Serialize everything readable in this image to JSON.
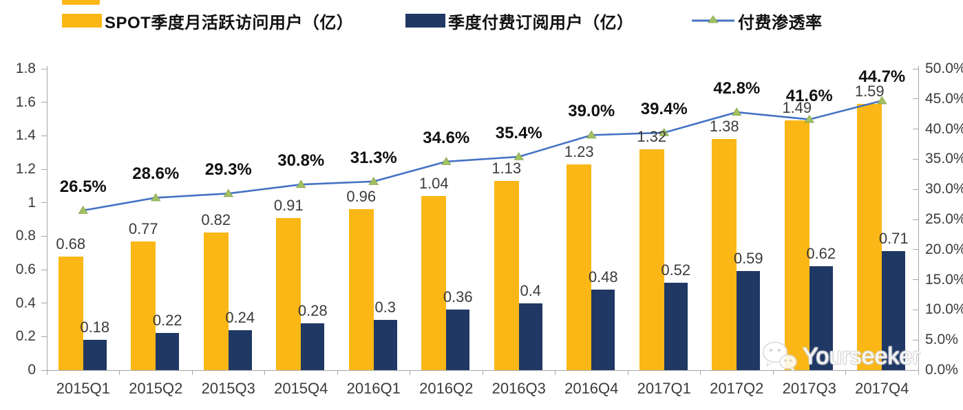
{
  "colors": {
    "mau_bar": "#FBB715",
    "sub_bar": "#1F3864",
    "line": "#4472C4",
    "marker": "#A2C162",
    "marker_edge": "#84A04C",
    "axis": "#A6A6A6",
    "label_text": "#3B3B3B"
  },
  "watermark": {
    "text": "Yourseeker",
    "icon": "wechat-icon"
  },
  "chart_data": {
    "type": "bar",
    "subtype": "grouped-bar-with-line-combo",
    "grid": false,
    "legend_position": "top",
    "categories": [
      "2015Q1",
      "2015Q2",
      "2015Q3",
      "2015Q4",
      "2016Q1",
      "2016Q2",
      "2016Q3",
      "2016Q4",
      "2017Q1",
      "2017Q2",
      "2017Q3",
      "2017Q4"
    ],
    "series": [
      {
        "name": "SPOT季度月活跃访问用户（亿）",
        "type": "bar",
        "axis": "left",
        "color": "#FBB715",
        "values": [
          0.68,
          0.77,
          0.82,
          0.91,
          0.96,
          1.04,
          1.13,
          1.23,
          1.32,
          1.38,
          1.49,
          1.59
        ],
        "labels": [
          "0.68",
          "0.77",
          "0.82",
          "0.91",
          "0.96",
          "1.04",
          "1.13",
          "1.23",
          "1.32",
          "1.38",
          "1.49",
          "1.59"
        ]
      },
      {
        "name": "季度付费订阅用户（亿）",
        "type": "bar",
        "axis": "left",
        "color": "#1F3864",
        "values": [
          0.18,
          0.22,
          0.24,
          0.28,
          0.3,
          0.36,
          0.4,
          0.48,
          0.52,
          0.59,
          0.62,
          0.71
        ],
        "labels": [
          "0.18",
          "0.22",
          "0.24",
          "0.28",
          "0.3",
          "0.36",
          "0.4",
          "0.48",
          "0.52",
          "0.59",
          "0.62",
          "0.71"
        ]
      },
      {
        "name": "付费渗透率",
        "type": "line",
        "axis": "right",
        "color": "#4472C4",
        "marker": "triangle",
        "marker_color": "#A2C162",
        "values": [
          26.5,
          28.6,
          29.3,
          30.8,
          31.3,
          34.6,
          35.4,
          39.0,
          39.4,
          42.8,
          41.6,
          44.7
        ],
        "labels": [
          "26.5%",
          "28.6%",
          "29.3%",
          "30.8%",
          "31.3%",
          "34.6%",
          "35.4%",
          "39.0%",
          "39.4%",
          "42.8%",
          "41.6%",
          "44.7%"
        ]
      }
    ],
    "left_axis": {
      "min": 0,
      "max": 1.8,
      "step": 0.2,
      "ticks": [
        "0",
        "0.2",
        "0.4",
        "0.6",
        "0.8",
        "1",
        "1.2",
        "1.4",
        "1.6",
        "1.8"
      ]
    },
    "right_axis": {
      "min": 0,
      "max": 50,
      "step": 5,
      "ticks": [
        "0.0%",
        "5.0%",
        "10.0%",
        "15.0%",
        "20.0%",
        "25.0%",
        "30.0%",
        "35.0%",
        "40.0%",
        "45.0%",
        "50.0%"
      ]
    }
  }
}
